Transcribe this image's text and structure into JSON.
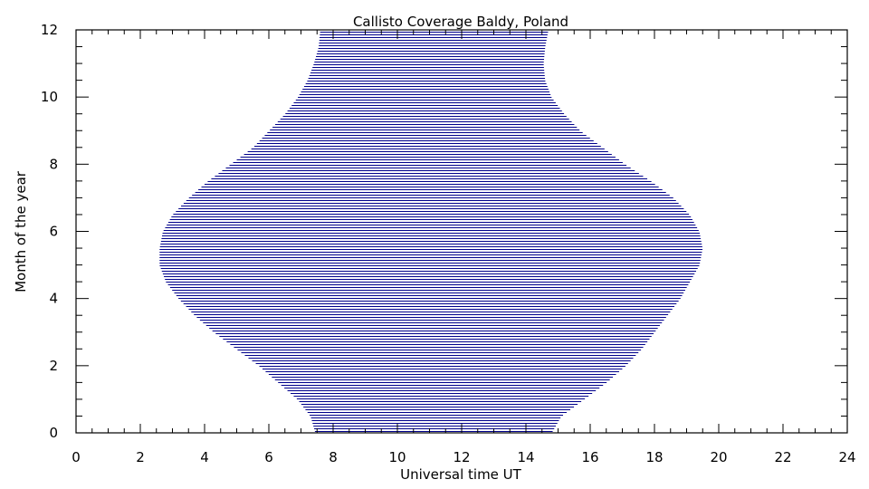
{
  "chart_data": {
    "type": "area",
    "title": "Callisto Coverage Baldy, Poland",
    "xlabel": "Universal time UT",
    "ylabel": "Month of the year",
    "xlim": [
      0,
      24
    ],
    "ylim": [
      0,
      12
    ],
    "xticks": [
      "0",
      "2",
      "4",
      "6",
      "8",
      "10",
      "12",
      "14",
      "16",
      "18",
      "20",
      "22",
      "24"
    ],
    "yticks": [
      "0",
      "2",
      "4",
      "6",
      "8",
      "10",
      "12"
    ],
    "x_minor_step": 0.5,
    "y_minor_step": 0.5,
    "fill_color": "#00008b",
    "grid": false,
    "coverage": {
      "month": [
        0,
        0.5,
        1,
        1.5,
        2,
        2.5,
        3,
        3.5,
        4,
        4.5,
        5,
        5.5,
        6,
        6.5,
        7,
        7.5,
        8,
        8.5,
        9,
        9.5,
        10,
        10.5,
        11,
        11.5,
        12
      ],
      "start_ut": [
        7.45,
        7.3,
        6.9,
        6.3,
        5.7,
        5.0,
        4.3,
        3.7,
        3.2,
        2.8,
        2.6,
        2.6,
        2.7,
        3.0,
        3.5,
        4.1,
        4.8,
        5.5,
        6.0,
        6.5,
        6.9,
        7.2,
        7.4,
        7.55,
        7.6
      ],
      "end_ut": [
        14.8,
        15.1,
        15.8,
        16.5,
        17.1,
        17.6,
        18.0,
        18.4,
        18.8,
        19.1,
        19.4,
        19.5,
        19.4,
        19.1,
        18.6,
        17.9,
        17.1,
        16.4,
        15.7,
        15.2,
        14.8,
        14.6,
        14.55,
        14.6,
        14.7
      ]
    }
  }
}
